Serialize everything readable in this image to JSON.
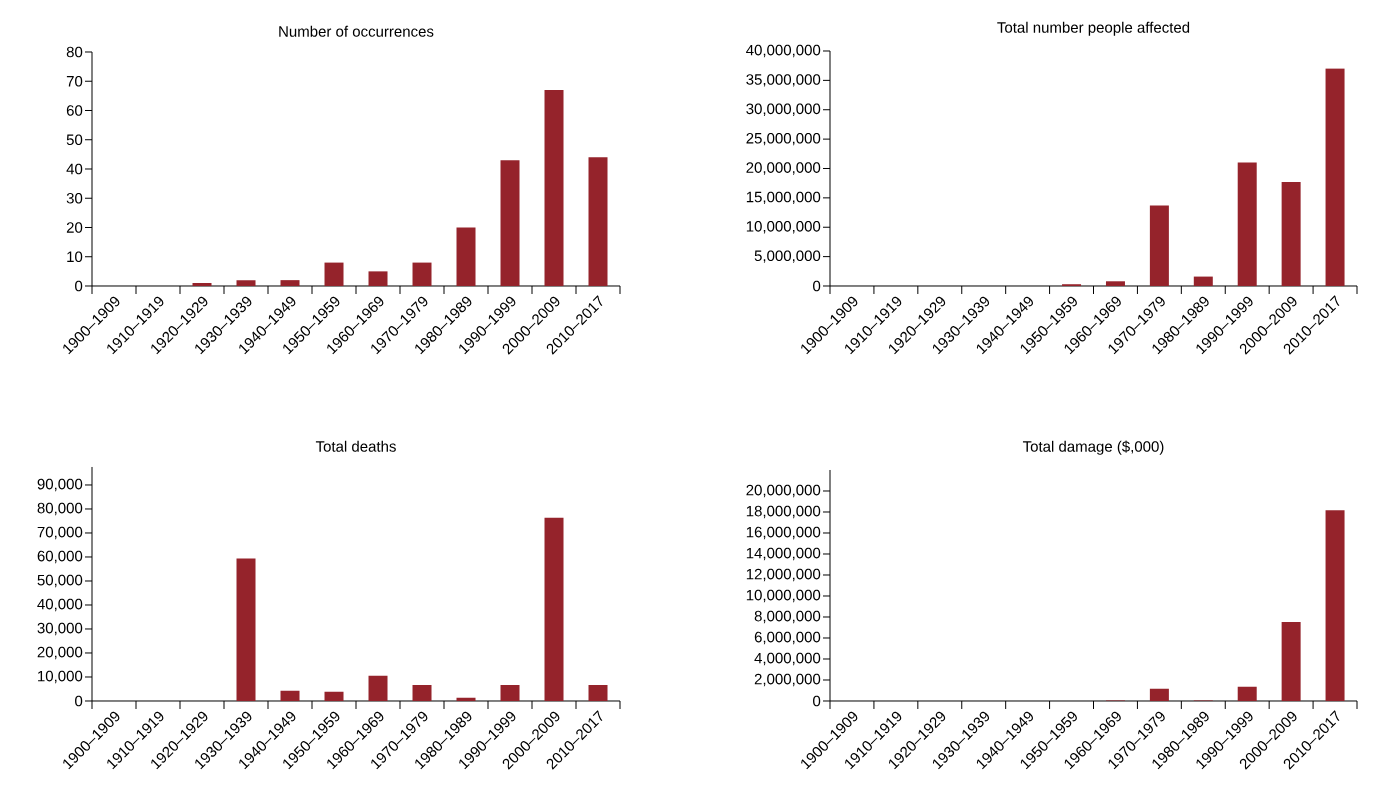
{
  "chart_data": [
    {
      "type": "bar",
      "title": "Number of occurrences",
      "categories": [
        "1900–1909",
        "1910–1919",
        "1920–1929",
        "1930–1939",
        "1940–1949",
        "1950–1959",
        "1960–1969",
        "1970–1979",
        "1980–1989",
        "1990–1999",
        "2000–2009",
        "2010–2017"
      ],
      "color": "#95232b",
      "values": [
        0,
        0,
        1,
        2,
        2,
        8,
        5,
        8,
        20,
        43,
        67,
        44
      ],
      "ylim": [
        0,
        80
      ],
      "yticks": [
        0,
        10,
        20,
        30,
        40,
        50,
        60,
        70,
        80
      ]
    },
    {
      "type": "bar",
      "title": "Total number people affected",
      "categories": [
        "1900–1909",
        "1910–1919",
        "1920–1929",
        "1930–1939",
        "1940–1949",
        "1950–1959",
        "1960–1969",
        "1970–1979",
        "1980–1989",
        "1990–1999",
        "2000–2009",
        "2010–2017"
      ],
      "color": "#95232b",
      "values": [
        0,
        0,
        0,
        0,
        0,
        300000,
        800000,
        13700000,
        1600000,
        21000000,
        17700000,
        37000000
      ],
      "ylim": [
        0,
        40000000
      ],
      "yticks": [
        0,
        {
          "value": 5000000,
          "label": "5,000,000"
        },
        {
          "value": 10000000,
          "label": "10,000,000"
        },
        {
          "value": 15000000,
          "label": "15,000,000"
        },
        {
          "value": 20000000,
          "label": "20,000,000"
        },
        {
          "value": 25000000,
          "label": "25,000,000"
        },
        {
          "value": 30000000,
          "label": "30,000,000"
        },
        {
          "value": 35000000,
          "label": "35,000,000"
        },
        {
          "value": 40000000,
          "label": "40,000,000"
        }
      ]
    },
    {
      "type": "bar",
      "title": "Total deaths",
      "categories": [
        "1900–1909",
        "1910–1919",
        "1920–1929",
        "1930–1939",
        "1940–1949",
        "1950–1959",
        "1960–1969",
        "1970–1979",
        "1980–1989",
        "1990–1999",
        "2000–2009",
        "2010–2017"
      ],
      "color": "#95232b",
      "values": [
        0,
        0,
        0,
        59400,
        4300,
        3800,
        10500,
        6700,
        1300,
        6700,
        76300,
        6700
      ],
      "ylim": [
        0,
        97500
      ],
      "yticks": [
        0,
        {
          "value": 10000,
          "label": "10,000"
        },
        {
          "value": 20000,
          "label": "20,000"
        },
        {
          "value": 30000,
          "label": "30,000"
        },
        {
          "value": 40000,
          "label": "40,000"
        },
        {
          "value": 50000,
          "label": "50,000"
        },
        {
          "value": 60000,
          "label": "60,000"
        },
        {
          "value": 70000,
          "label": "70,000"
        },
        {
          "value": 80000,
          "label": "80,000"
        },
        {
          "value": 90000,
          "label": "90,000"
        }
      ]
    },
    {
      "type": "bar",
      "title": "Total damage ($,000)",
      "categories": [
        "1900–1909",
        "1910–1919",
        "1920–1929",
        "1930–1939",
        "1940–1949",
        "1950–1959",
        "1960–1969",
        "1970–1979",
        "1980–1989",
        "1990–1999",
        "2000–2009",
        "2010–2017"
      ],
      "color": "#95232b",
      "values": [
        0,
        0,
        0,
        0,
        0,
        0,
        50000,
        1160000,
        50000,
        1360000,
        7520000,
        18160000
      ],
      "ylim": [
        0,
        22000000
      ],
      "yticks": [
        0,
        {
          "value": 2000000,
          "label": "2,000,000"
        },
        {
          "value": 4000000,
          "label": "4,000,000"
        },
        {
          "value": 6000000,
          "label": "6,000,000"
        },
        {
          "value": 8000000,
          "label": "8,000,000"
        },
        {
          "value": 10000000,
          "label": "10,000,000"
        },
        {
          "value": 12000000,
          "label": "12,000,000"
        },
        {
          "value": 14000000,
          "label": "14,000,000"
        },
        {
          "value": 16000000,
          "label": "16,000,000"
        },
        {
          "value": 18000000,
          "label": "18,000,000"
        },
        {
          "value": 20000000,
          "label": "20,000,000"
        }
      ]
    }
  ]
}
